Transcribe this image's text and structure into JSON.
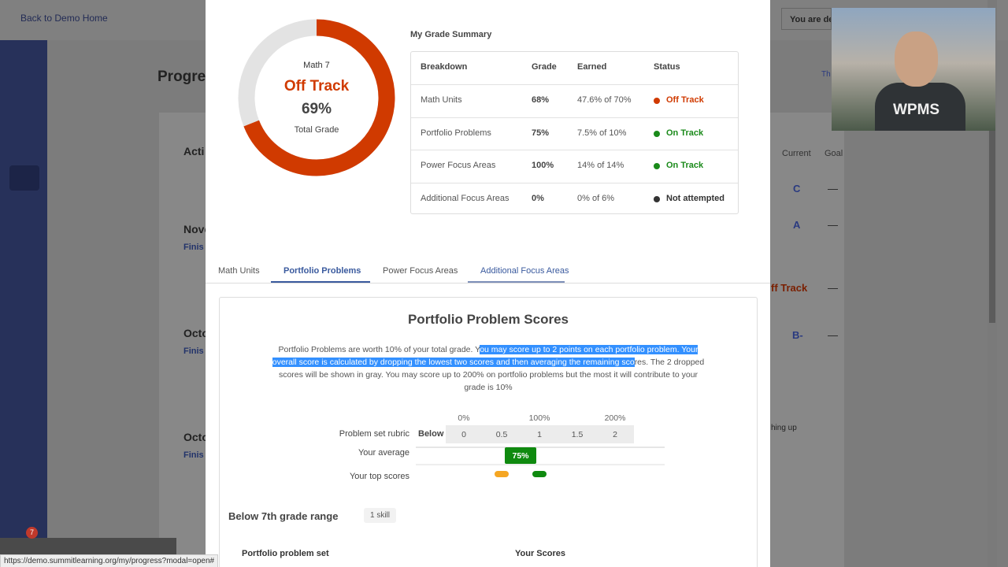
{
  "background": {
    "back_link": "Back to Demo Home",
    "page_title": "Progre",
    "demo_banner": "You are de",
    "pager": "Th",
    "sections": [
      "Acti",
      "Nove",
      "Finis",
      "Octo",
      "Finis",
      "Octo",
      "Finis"
    ],
    "column_headers": [
      "Current",
      "Goal"
    ],
    "grades": [
      "C",
      "A",
      "ff Track",
      "B-"
    ],
    "dash": "—",
    "note": "hing up",
    "notification_count": "7"
  },
  "grade_summary": {
    "course": "Math 7",
    "status": "Off Track",
    "status_color": "#d03a00",
    "total": {
      "value": 69,
      "label": "69%"
    },
    "total_caption": "Total Grade",
    "title": "My Grade Summary",
    "table": {
      "header": [
        "Breakdown",
        "Grade",
        "Earned",
        "Status"
      ],
      "rows": [
        {
          "cells": [
            "Math Units",
            "68%",
            "47.6% of 70%",
            "Off Track"
          ],
          "status_color": "#d03a00"
        },
        {
          "cells": [
            "Portfolio Problems",
            "75%",
            "7.5% of 10%",
            "On Track"
          ],
          "status_color": "#1a8a1a"
        },
        {
          "cells": [
            "Power Focus Areas",
            "100%",
            "14% of 14%",
            "On Track"
          ],
          "status_color": "#1a8a1a"
        },
        {
          "cells": [
            "Additional Focus Areas",
            "0%",
            "0% of 6%",
            "Not attempted"
          ],
          "status_color": "#333333"
        }
      ]
    }
  },
  "tabs": {
    "items": [
      "Math Units",
      "Portfolio Problems",
      "Power Focus Areas",
      "Additional Focus Areas"
    ],
    "active": 1,
    "hover": 3
  },
  "scores": {
    "title": "Portfolio Problem Scores",
    "description": [
      "Portfolio Problems are worth 10% of your total grade. Y",
      "ou may score up to 2 points on each portfolio problem. Your overall score is calculated by dropping the lowest two scores and then averaging the remaining sco",
      "res. The 2 dropped scores will be shown in gray. You may score up to 200% on portfolio problems but the most it will contribute to your grade is 10%"
    ],
    "percent_lim": [
      0,
      200
    ],
    "percent_ticks": [
      {
        "value": 0,
        "label": "0%"
      },
      {
        "value": 100,
        "label": "100%"
      },
      {
        "value": 200,
        "label": "200%"
      }
    ],
    "rubric_label": "Problem set rubric",
    "rubric_below": "Below",
    "points_lim": [
      0,
      2
    ],
    "points_ticks": [
      0,
      0.5,
      1,
      1.5,
      2
    ],
    "average_label": "Your average",
    "average": {
      "value": 75,
      "label": "75%"
    },
    "average_color": "#0f8a0f",
    "top_scores_label": "Your top scores",
    "top_scores": [
      {
        "value": 0.5,
        "color": "#f5a623"
      },
      {
        "value": 1,
        "color": "#0f8a0f"
      }
    ],
    "range_title": "Below 7th grade range",
    "range_count": "1 skill",
    "table_header": [
      "Portfolio problem set",
      "Your Scores"
    ]
  },
  "webcam_text": "WPMS",
  "status_bar": "https://demo.summitlearning.org/my/progress?modal=open#"
}
